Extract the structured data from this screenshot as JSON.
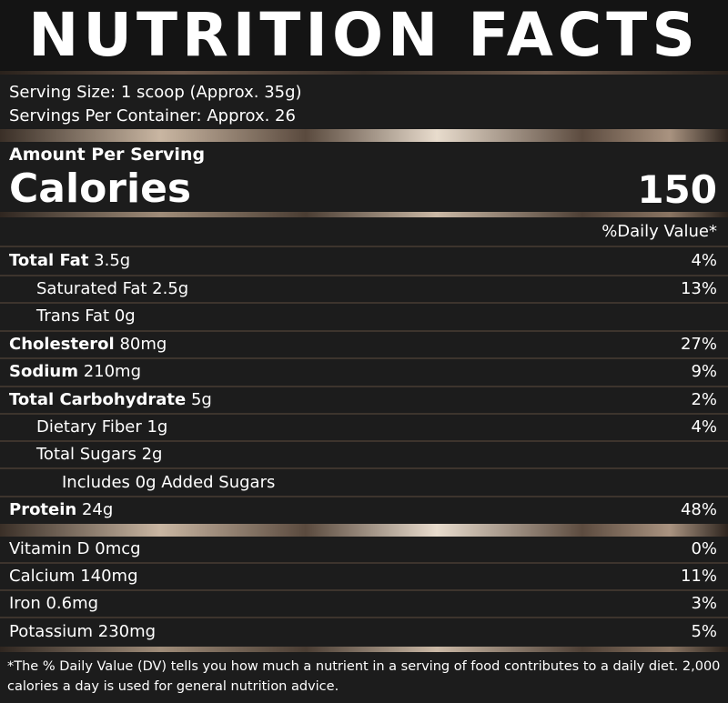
{
  "title": "NUTRITION FACTS",
  "serving_size": "Serving Size: 1 scoop (Approx. 35g)",
  "servings_per_container": "Servings Per Container: Approx. 26",
  "amount_per_serving": "Amount Per Serving",
  "calories_label": "Calories",
  "calories_value": "150",
  "daily_value_header": "%Daily Value*",
  "nutrients": [
    {
      "name": "Total Fat",
      "amount": "3.5g",
      "dv": "4%"
    },
    {
      "name": "Saturated Fat",
      "amount": "2.5g",
      "dv": "13%"
    },
    {
      "name": "Trans Fat",
      "amount": "0g",
      "dv": ""
    },
    {
      "name": "Cholesterol",
      "amount": "80mg",
      "dv": "27%"
    },
    {
      "name": "Sodium",
      "amount": "210mg",
      "dv": "9%"
    },
    {
      "name": "Total Carbohydrate",
      "amount": "5g",
      "dv": "2%"
    },
    {
      "name": "Dietary Fiber",
      "amount": "1g",
      "dv": "4%"
    },
    {
      "name": "Total Sugars",
      "amount": "2g",
      "dv": ""
    },
    {
      "name": "Includes 0g Added Sugars",
      "amount": "",
      "dv": ""
    },
    {
      "name": "Protein",
      "amount": "24g",
      "dv": "48%"
    }
  ],
  "vitamins": [
    {
      "name": "Vitamin D",
      "amount": "0mcg",
      "dv": "0%"
    },
    {
      "name": "Calcium",
      "amount": "140mg",
      "dv": "11%"
    },
    {
      "name": "Iron",
      "amount": "0.6mg",
      "dv": "3%"
    },
    {
      "name": "Potassium",
      "amount": "230mg",
      "dv": "5%"
    }
  ],
  "footnote": "*The % Daily Value (DV) tells you how much a nutrient in a serving of food contributes to a daily diet. 2,000 calories a day is used for general nutrition advice."
}
